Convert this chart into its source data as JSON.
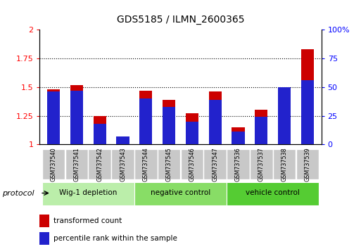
{
  "title": "GDS5185 / ILMN_2600365",
  "samples": [
    "GSM737540",
    "GSM737541",
    "GSM737542",
    "GSM737543",
    "GSM737544",
    "GSM737545",
    "GSM737546",
    "GSM737547",
    "GSM737536",
    "GSM737537",
    "GSM737538",
    "GSM737539"
  ],
  "red_values": [
    1.48,
    1.52,
    1.25,
    1.07,
    1.47,
    1.39,
    1.27,
    1.46,
    1.15,
    1.3,
    1.5,
    1.83
  ],
  "blue_values_pct": [
    46,
    47,
    18,
    7,
    40,
    33,
    20,
    39,
    11,
    24,
    50,
    56
  ],
  "groups": [
    {
      "label": "Wig-1 depletion",
      "start": 0,
      "end": 3,
      "color": "#bbeeaa"
    },
    {
      "label": "negative control",
      "start": 4,
      "end": 7,
      "color": "#88dd66"
    },
    {
      "label": "vehicle control",
      "start": 8,
      "end": 11,
      "color": "#55cc33"
    }
  ],
  "ylim_left": [
    1.0,
    2.0
  ],
  "ylim_right": [
    0,
    100
  ],
  "yticks_left": [
    1.0,
    1.25,
    1.5,
    1.75,
    2.0
  ],
  "ytick_labels_left": [
    "1",
    "1.25",
    "1.5",
    "1.75",
    "2"
  ],
  "yticks_right": [
    0,
    25,
    50,
    75,
    100
  ],
  "ytick_labels_right": [
    "0",
    "25",
    "50",
    "75",
    "100%"
  ],
  "bar_width": 0.55,
  "red_color": "#cc0000",
  "blue_color": "#2222cc",
  "sample_box_color": "#c8c8c8",
  "protocol_label": "protocol"
}
